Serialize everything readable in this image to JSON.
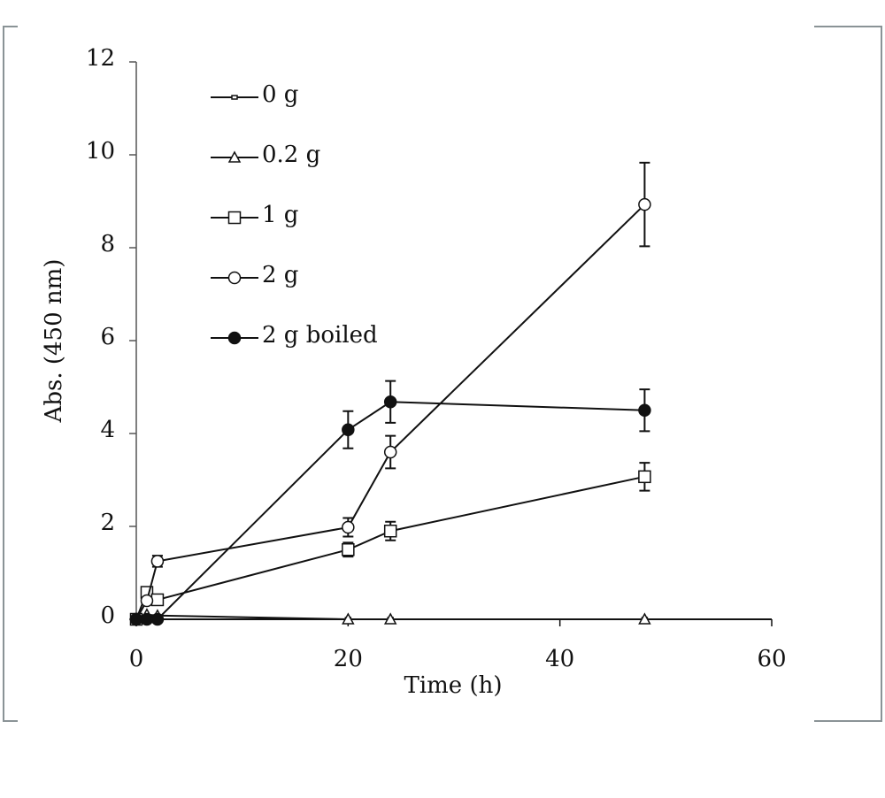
{
  "chart_data": {
    "type": "line",
    "xlabel": "Time (h)",
    "ylabel": "Abs. (450 nm)",
    "xlim": [
      0,
      60
    ],
    "xticks": [
      0,
      20,
      40,
      60
    ],
    "ylim": [
      0,
      12
    ],
    "yticks": [
      0,
      2,
      4,
      6,
      8,
      10,
      12
    ],
    "x": [
      0,
      1,
      2,
      20,
      24,
      48
    ],
    "series": [
      {
        "name": "0 g",
        "color": "#111111",
        "marker": "none",
        "marker_fill": "#ffffff",
        "values": [
          0,
          0,
          0,
          0,
          0,
          0
        ],
        "errors": [
          null,
          null,
          null,
          null,
          null,
          null
        ]
      },
      {
        "name": "0.2 g",
        "color": "#111111",
        "marker": "triangle",
        "marker_fill": "#ffffff",
        "values": [
          0,
          0.1,
          0.08,
          0,
          0,
          0
        ],
        "errors": [
          null,
          null,
          null,
          null,
          null,
          null
        ]
      },
      {
        "name": "1 g",
        "color": "#111111",
        "marker": "square",
        "marker_fill": "#ffffff",
        "values": [
          0,
          0.58,
          0.42,
          1.5,
          1.9,
          3.07
        ],
        "errors": [
          null,
          null,
          null,
          0.15,
          0.2,
          0.3
        ]
      },
      {
        "name": "2 g",
        "color": "#111111",
        "marker": "circle",
        "marker_fill": "#ffffff",
        "values": [
          0,
          0.4,
          1.25,
          1.98,
          3.6,
          8.93
        ],
        "errors": [
          null,
          null,
          0.12,
          0.2,
          0.35,
          0.9
        ]
      },
      {
        "name": "2 g boiled",
        "color": "#111111",
        "marker": "circle",
        "marker_fill": "#111111",
        "values": [
          0,
          0,
          0,
          4.08,
          4.68,
          4.5
        ],
        "errors": [
          null,
          null,
          null,
          0.4,
          0.45,
          0.45
        ]
      }
    ]
  }
}
